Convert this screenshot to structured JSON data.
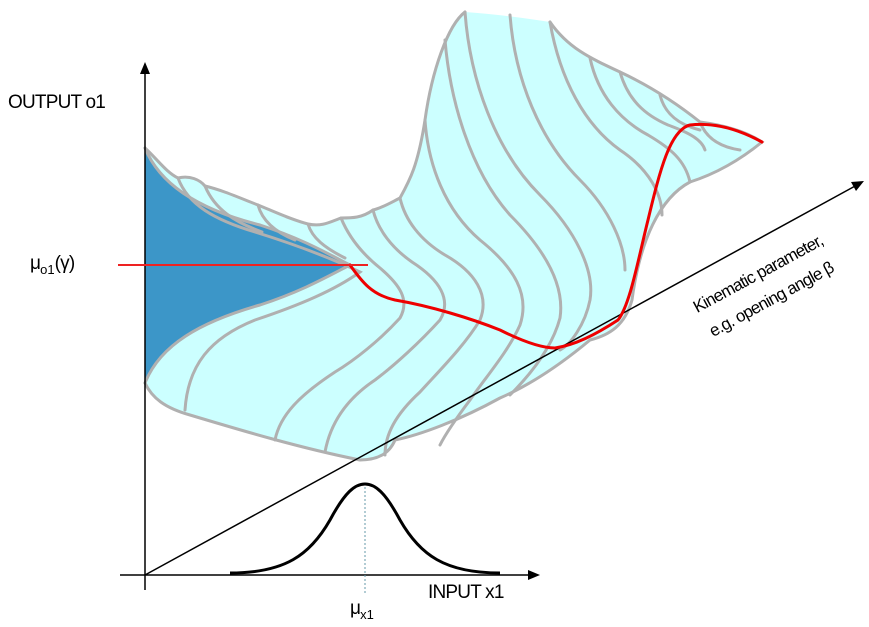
{
  "labels": {
    "output_axis": "OUTPUT o1",
    "input_axis": "INPUT x1",
    "kinematic_line1": "Kinematic parameter,",
    "kinematic_line2": "e.g. opening angle β",
    "mu_o1_symbol": "μ",
    "mu_o1_sub": "o1",
    "mu_o1_arg": "(γ)",
    "mu_x1_symbol": "μ",
    "mu_x1_sub": "x1"
  },
  "colors": {
    "surface_fill": "#ccffff",
    "surface_edge": "#b0b0b0",
    "section_fill": "#3c96c8",
    "trace_line": "#ee0000",
    "marker_line": "#ee2222",
    "axis": "#000000",
    "input_curve": "#000000",
    "guide_line": "#6699aa"
  }
}
